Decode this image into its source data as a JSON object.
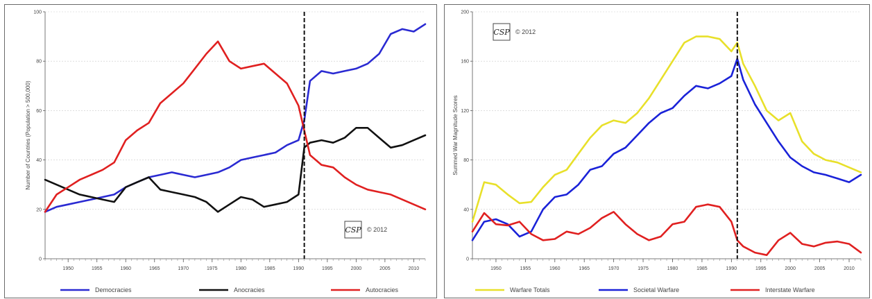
{
  "chart_data": [
    {
      "type": "line",
      "ylabel": "Number of Countries (Population > 500,000)",
      "xlim": [
        1946,
        2012
      ],
      "ylim": [
        0,
        100
      ],
      "yticks": [
        0,
        20,
        40,
        60,
        80,
        100
      ],
      "xticks": [
        1950,
        1955,
        1960,
        1965,
        1970,
        1975,
        1980,
        1985,
        1990,
        1995,
        2000,
        2005,
        2010
      ],
      "grid": true,
      "vline_x": 1991,
      "stamp": "© 2012",
      "logo": "CSP",
      "legend_position": "bottom",
      "series": [
        {
          "name": "Democracies",
          "color": "#2a2ad2",
          "x": [
            1946,
            1948,
            1950,
            1952,
            1954,
            1956,
            1958,
            1960,
            1962,
            1964,
            1966,
            1968,
            1970,
            1972,
            1974,
            1976,
            1978,
            1980,
            1982,
            1984,
            1986,
            1988,
            1990,
            1991,
            1992,
            1994,
            1996,
            1998,
            2000,
            2002,
            2004,
            2006,
            2008,
            2010,
            2012
          ],
          "values": [
            19,
            21,
            22,
            23,
            24,
            25,
            26,
            29,
            31,
            33,
            34,
            35,
            34,
            33,
            34,
            35,
            37,
            40,
            41,
            42,
            43,
            46,
            48,
            56,
            72,
            76,
            75,
            76,
            77,
            79,
            83,
            91,
            93,
            92,
            95
          ]
        },
        {
          "name": "Anocracies",
          "color": "#111111",
          "x": [
            1946,
            1948,
            1950,
            1952,
            1954,
            1956,
            1958,
            1960,
            1962,
            1964,
            1966,
            1968,
            1970,
            1972,
            1974,
            1976,
            1978,
            1980,
            1982,
            1984,
            1986,
            1988,
            1990,
            1991,
            1992,
            1994,
            1996,
            1998,
            2000,
            2002,
            2004,
            2006,
            2008,
            2010,
            2012
          ],
          "values": [
            32,
            30,
            28,
            26,
            25,
            24,
            23,
            29,
            31,
            33,
            28,
            27,
            26,
            25,
            23,
            19,
            22,
            25,
            24,
            21,
            22,
            23,
            26,
            45,
            47,
            48,
            47,
            49,
            53,
            53,
            49,
            45,
            46,
            48,
            50
          ]
        },
        {
          "name": "Autocracies",
          "color": "#e02020",
          "x": [
            1946,
            1948,
            1950,
            1952,
            1954,
            1956,
            1958,
            1960,
            1962,
            1964,
            1966,
            1968,
            1970,
            1972,
            1974,
            1976,
            1978,
            1980,
            1982,
            1984,
            1986,
            1988,
            1990,
            1991,
            1992,
            1994,
            1996,
            1998,
            2000,
            2002,
            2004,
            2006,
            2008,
            2010,
            2012
          ],
          "values": [
            19,
            26,
            29,
            32,
            34,
            36,
            39,
            48,
            52,
            55,
            63,
            67,
            71,
            77,
            83,
            88,
            80,
            77,
            78,
            79,
            75,
            71,
            62,
            52,
            42,
            38,
            37,
            33,
            30,
            28,
            27,
            26,
            24,
            22,
            20
          ]
        }
      ]
    },
    {
      "type": "line",
      "ylabel": "Summed War Magnitude Scores",
      "xlim": [
        1946,
        2012
      ],
      "ylim": [
        0,
        200
      ],
      "yticks": [
        0,
        40,
        80,
        120,
        160,
        200
      ],
      "xticks": [
        1950,
        1955,
        1960,
        1965,
        1970,
        1975,
        1980,
        1985,
        1990,
        1995,
        2000,
        2005,
        2010
      ],
      "grid": true,
      "vline_x": 1991,
      "stamp": "© 2012",
      "logo": "CSP",
      "legend_position": "bottom",
      "series": [
        {
          "name": "Warfare Totals",
          "color": "#e8e02a",
          "x": [
            1946,
            1948,
            1950,
            1952,
            1954,
            1956,
            1958,
            1960,
            1962,
            1964,
            1966,
            1968,
            1970,
            1972,
            1974,
            1976,
            1978,
            1980,
            1982,
            1984,
            1986,
            1988,
            1990,
            1991,
            1992,
            1994,
            1996,
            1998,
            2000,
            2002,
            2004,
            2006,
            2008,
            2010,
            2012
          ],
          "values": [
            30,
            62,
            60,
            52,
            45,
            46,
            58,
            68,
            72,
            85,
            98,
            108,
            112,
            110,
            118,
            130,
            145,
            160,
            175,
            180,
            180,
            178,
            168,
            175,
            158,
            140,
            120,
            112,
            118,
            95,
            85,
            80,
            78,
            74,
            70
          ]
        },
        {
          "name": "Societal Warfare",
          "color": "#1a22d8",
          "x": [
            1946,
            1948,
            1950,
            1952,
            1954,
            1956,
            1958,
            1960,
            1962,
            1964,
            1966,
            1968,
            1970,
            1972,
            1974,
            1976,
            1978,
            1980,
            1982,
            1984,
            1986,
            1988,
            1990,
            1991,
            1992,
            1994,
            1996,
            1998,
            2000,
            2002,
            2004,
            2006,
            2008,
            2010,
            2012
          ],
          "values": [
            15,
            30,
            32,
            28,
            18,
            22,
            40,
            50,
            52,
            60,
            72,
            75,
            85,
            90,
            100,
            110,
            118,
            122,
            132,
            140,
            138,
            142,
            148,
            162,
            145,
            125,
            110,
            95,
            82,
            75,
            70,
            68,
            65,
            62,
            68
          ]
        },
        {
          "name": "Interstate Warfare",
          "color": "#e02020",
          "x": [
            1946,
            1948,
            1950,
            1952,
            1954,
            1956,
            1958,
            1960,
            1962,
            1964,
            1966,
            1968,
            1970,
            1972,
            1974,
            1976,
            1978,
            1980,
            1982,
            1984,
            1986,
            1988,
            1990,
            1991,
            1992,
            1994,
            1996,
            1998,
            2000,
            2002,
            2004,
            2006,
            2008,
            2010,
            2012
          ],
          "values": [
            22,
            37,
            28,
            27,
            30,
            20,
            15,
            16,
            22,
            20,
            25,
            33,
            38,
            28,
            20,
            15,
            18,
            28,
            30,
            42,
            44,
            42,
            30,
            15,
            10,
            5,
            3,
            15,
            21,
            12,
            10,
            13,
            14,
            12,
            5
          ]
        }
      ]
    }
  ]
}
